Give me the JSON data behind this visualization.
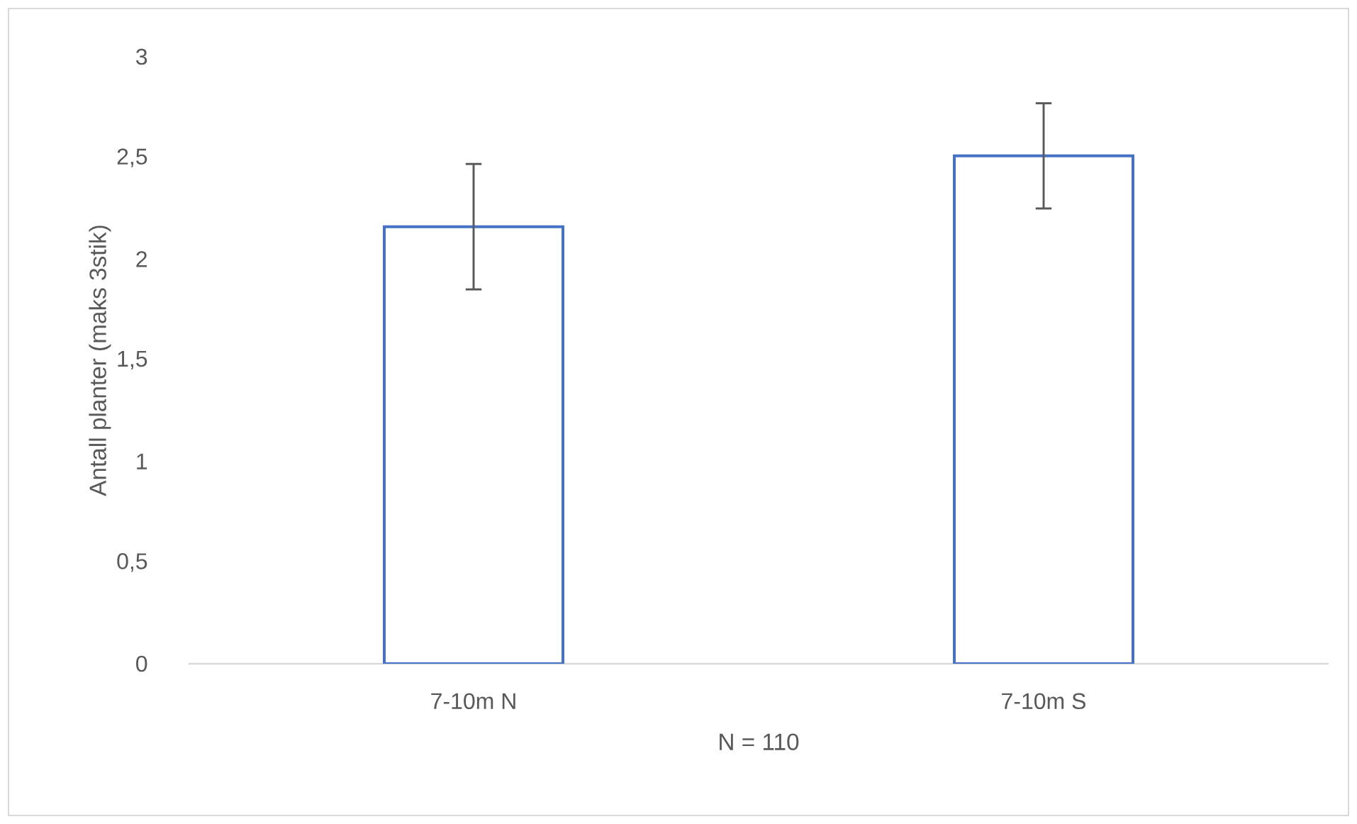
{
  "chart_data": {
    "type": "bar",
    "xlabel": "N = 110",
    "ylabel": "Antall planter (maks 3stik)",
    "categories": [
      "7-10m N",
      "7-10m S"
    ],
    "values": [
      2.16,
      2.51
    ],
    "errors": [
      0.31,
      0.26
    ],
    "color": "#ffffff",
    "ylim": [
      0,
      3
    ],
    "yticks": [
      0,
      {
        "value": 0.5,
        "label": "0,5"
      },
      1,
      {
        "value": 1.5,
        "label": "1,5"
      },
      2,
      {
        "value": 2.5,
        "label": "2,5"
      },
      3
    ],
    "grid": false
  }
}
